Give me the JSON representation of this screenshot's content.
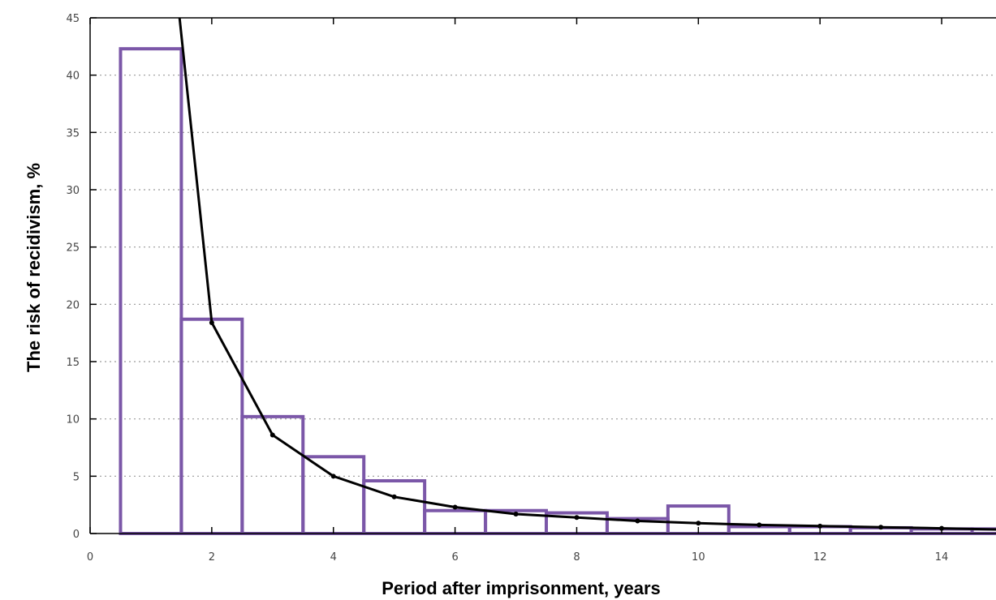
{
  "chart_data": {
    "type": "bar",
    "title": "",
    "xlabel": "Period after imprisonment, years",
    "ylabel": "The risk of recidivism, %",
    "xlim": [
      0,
      15
    ],
    "ylim": [
      0,
      45
    ],
    "x_ticks": [
      0,
      2,
      4,
      6,
      8,
      10,
      12,
      14
    ],
    "y_ticks": [
      0,
      5,
      10,
      15,
      20,
      25,
      30,
      35,
      40,
      45
    ],
    "grid": "horizontal-dotted",
    "bar_color": "#7b57a8",
    "line_color": "#000000",
    "series": [
      {
        "type": "bar",
        "x": [
          1,
          2,
          3,
          4,
          5,
          6,
          7,
          8,
          9,
          10,
          11,
          12,
          13,
          14,
          15
        ],
        "values": [
          42.3,
          18.7,
          10.2,
          6.7,
          4.6,
          2.0,
          2.0,
          1.8,
          1.3,
          2.4,
          0.6,
          0.6,
          0.5,
          0.4,
          0.4
        ]
      },
      {
        "type": "line",
        "x": [
          1.47,
          2,
          3,
          4,
          5,
          6,
          7,
          8,
          9,
          10,
          11,
          12,
          13,
          14,
          15
        ],
        "values": [
          45,
          18.4,
          8.6,
          5.0,
          3.2,
          2.3,
          1.7,
          1.4,
          1.1,
          0.9,
          0.75,
          0.65,
          0.55,
          0.45,
          0.35
        ]
      }
    ]
  }
}
